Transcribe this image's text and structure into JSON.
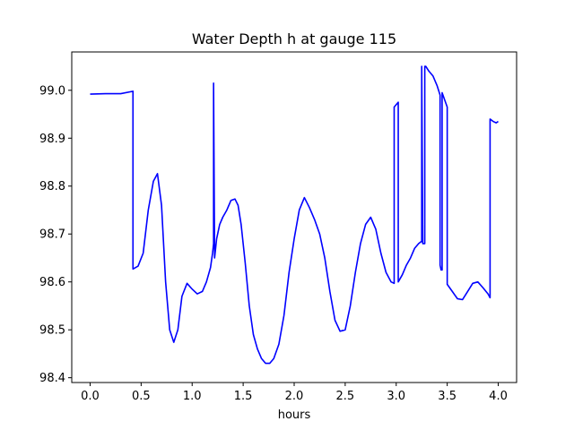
{
  "chart_data": {
    "type": "line",
    "title": "Water Depth h at gauge 115",
    "xlabel": "hours",
    "ylabel": "",
    "xlim": [
      -0.18,
      4.18
    ],
    "ylim": [
      98.39,
      99.08
    ],
    "xticks": [
      0.0,
      0.5,
      1.0,
      1.5,
      2.0,
      2.5,
      3.0,
      3.5,
      4.0
    ],
    "xtick_labels": [
      "0.0",
      "0.5",
      "1.0",
      "1.5",
      "2.0",
      "2.5",
      "3.0",
      "3.5",
      "4.0"
    ],
    "yticks": [
      98.4,
      98.5,
      98.6,
      98.7,
      98.8,
      98.9,
      99.0
    ],
    "ytick_labels": [
      "98.4",
      "98.5",
      "98.6",
      "98.7",
      "98.8",
      "98.9",
      "99.0"
    ],
    "grid": false,
    "series": [
      {
        "color": "#0000ff",
        "x": [
          0.0,
          0.15,
          0.3,
          0.42,
          0.42,
          0.47,
          0.52,
          0.57,
          0.62,
          0.66,
          0.7,
          0.74,
          0.78,
          0.82,
          0.86,
          0.9,
          0.95,
          1.0,
          1.05,
          1.1,
          1.14,
          1.18,
          1.2,
          1.21,
          1.21,
          1.22,
          1.24,
          1.27,
          1.3,
          1.34,
          1.38,
          1.42,
          1.45,
          1.48,
          1.52,
          1.56,
          1.6,
          1.64,
          1.68,
          1.72,
          1.76,
          1.8,
          1.85,
          1.9,
          1.95,
          2.0,
          2.05,
          2.1,
          2.15,
          2.2,
          2.25,
          2.3,
          2.35,
          2.4,
          2.45,
          2.5,
          2.55,
          2.6,
          2.65,
          2.7,
          2.75,
          2.8,
          2.85,
          2.9,
          2.95,
          2.98,
          2.98,
          3.02,
          3.02,
          3.06,
          3.1,
          3.14,
          3.18,
          3.22,
          3.25,
          3.25,
          3.26,
          3.26,
          3.28,
          3.28,
          3.29,
          3.32,
          3.36,
          3.4,
          3.43,
          3.43,
          3.44,
          3.45,
          3.45,
          3.5,
          3.5,
          3.55,
          3.6,
          3.65,
          3.7,
          3.75,
          3.8,
          3.85,
          3.9,
          3.92,
          3.92,
          3.95,
          3.98,
          4.0
        ],
        "y": [
          98.992,
          98.993,
          98.993,
          98.998,
          98.627,
          98.633,
          98.66,
          98.75,
          98.81,
          98.826,
          98.76,
          98.6,
          98.5,
          98.474,
          98.5,
          98.57,
          98.597,
          98.585,
          98.575,
          98.58,
          98.6,
          98.63,
          98.66,
          98.68,
          99.015,
          98.65,
          98.69,
          98.72,
          98.735,
          98.75,
          98.77,
          98.773,
          98.76,
          98.72,
          98.64,
          98.55,
          98.49,
          98.46,
          98.44,
          98.43,
          98.43,
          98.44,
          98.47,
          98.53,
          98.62,
          98.69,
          98.75,
          98.776,
          98.755,
          98.73,
          98.7,
          98.65,
          98.58,
          98.52,
          98.497,
          98.5,
          98.55,
          98.62,
          98.68,
          98.72,
          98.735,
          98.71,
          98.66,
          98.62,
          98.6,
          98.597,
          98.965,
          98.975,
          98.6,
          98.615,
          98.635,
          98.65,
          98.67,
          98.68,
          98.685,
          99.05,
          98.68,
          98.68,
          98.68,
          99.05,
          99.05,
          99.04,
          99.03,
          99.01,
          98.99,
          98.635,
          98.625,
          98.625,
          98.995,
          98.965,
          98.595,
          98.58,
          98.565,
          98.563,
          98.58,
          98.597,
          98.6,
          98.588,
          98.575,
          98.567,
          98.94,
          98.935,
          98.932,
          98.935
        ]
      }
    ]
  }
}
